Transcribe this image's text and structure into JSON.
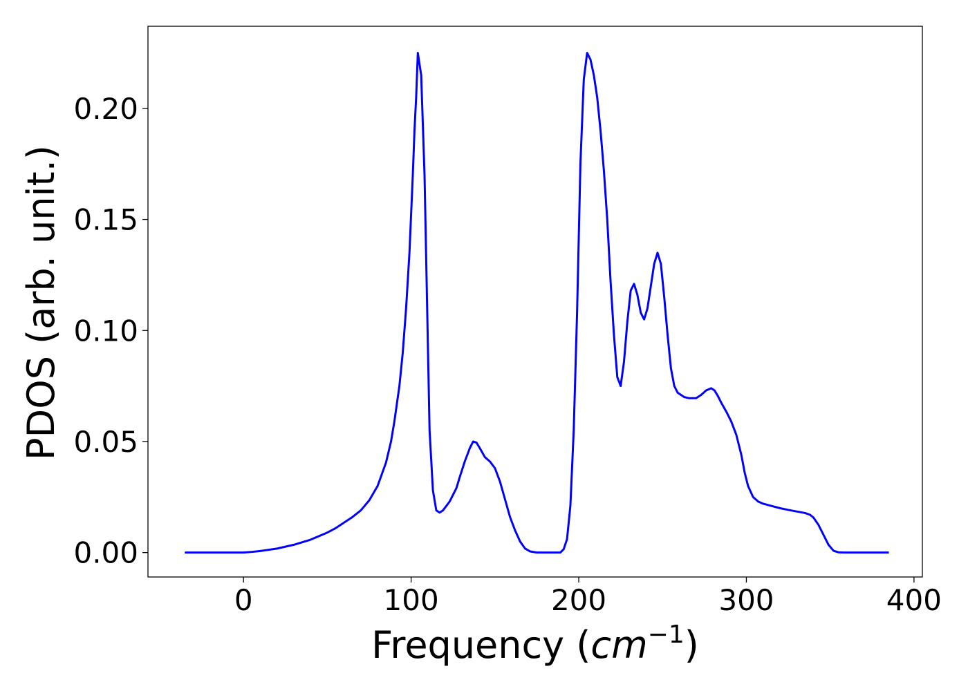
{
  "chart_data": {
    "type": "line",
    "xlabel": "Frequency (",
    "xlabel_math_base": "cm",
    "xlabel_math_sup": "−1",
    "xlabel_close": ")",
    "ylabel": "PDOS (arb. unit.)",
    "xlim": [
      -57,
      405
    ],
    "ylim": [
      -0.011,
      0.237
    ],
    "xticks": [
      0,
      100,
      200,
      300,
      400
    ],
    "xtick_labels": [
      "0",
      "100",
      "200",
      "300",
      "400"
    ],
    "yticks": [
      0.0,
      0.05,
      0.1,
      0.15,
      0.2
    ],
    "ytick_labels": [
      "0.00",
      "0.05",
      "0.10",
      "0.15",
      "0.20"
    ],
    "grid": false,
    "series": [
      {
        "color": "#0000ff",
        "x": [
          -35,
          -10,
          0,
          5,
          10,
          20,
          30,
          40,
          50,
          55,
          60,
          65,
          70,
          75,
          80,
          85,
          88,
          90,
          93,
          95,
          97,
          99,
          101,
          102,
          103,
          104,
          106,
          108,
          111,
          113,
          115,
          117,
          119,
          121,
          123,
          125,
          127,
          129,
          132,
          135,
          137,
          139,
          141,
          144,
          147,
          150,
          153,
          156,
          159,
          162,
          165,
          168,
          171,
          175,
          180,
          185,
          189,
          191,
          193,
          195,
          197,
          199,
          201,
          203,
          205,
          207,
          209,
          211,
          213,
          215,
          217,
          219,
          221,
          223,
          225,
          227,
          229,
          231,
          233,
          235,
          237,
          239,
          241,
          243,
          245,
          247,
          249,
          251,
          253,
          255,
          257,
          259,
          261,
          263,
          266,
          270,
          273,
          276,
          279,
          281,
          283,
          285,
          288,
          291,
          294,
          297,
          299,
          301,
          304,
          307,
          310,
          315,
          320,
          325,
          330,
          335,
          338,
          340,
          343,
          346,
          349,
          352,
          355,
          358,
          362,
          370,
          385
        ],
        "y": [
          0,
          0,
          0,
          0.0003,
          0.0007,
          0.0018,
          0.0035,
          0.0058,
          0.009,
          0.011,
          0.0135,
          0.016,
          0.019,
          0.0235,
          0.03,
          0.0405,
          0.05,
          0.059,
          0.075,
          0.09,
          0.11,
          0.135,
          0.17,
          0.19,
          0.205,
          0.225,
          0.215,
          0.17,
          0.055,
          0.028,
          0.019,
          0.018,
          0.019,
          0.021,
          0.023,
          0.026,
          0.029,
          0.034,
          0.041,
          0.047,
          0.05,
          0.0495,
          0.047,
          0.043,
          0.041,
          0.038,
          0.032,
          0.024,
          0.016,
          0.01,
          0.005,
          0.0018,
          0.0005,
          0,
          0,
          0,
          0,
          0.0015,
          0.006,
          0.021,
          0.055,
          0.108,
          0.175,
          0.213,
          0.225,
          0.222,
          0.215,
          0.205,
          0.19,
          0.172,
          0.15,
          0.122,
          0.098,
          0.079,
          0.075,
          0.086,
          0.104,
          0.118,
          0.121,
          0.116,
          0.108,
          0.105,
          0.11,
          0.12,
          0.13,
          0.135,
          0.13,
          0.115,
          0.098,
          0.083,
          0.075,
          0.072,
          0.071,
          0.07,
          0.0695,
          0.0695,
          0.071,
          0.073,
          0.074,
          0.073,
          0.0705,
          0.0675,
          0.0635,
          0.059,
          0.053,
          0.044,
          0.036,
          0.03,
          0.025,
          0.023,
          0.022,
          0.021,
          0.02,
          0.0192,
          0.0185,
          0.0178,
          0.017,
          0.0158,
          0.0125,
          0.008,
          0.0035,
          0.0008,
          0.0001,
          0,
          0,
          0,
          0
        ]
      }
    ]
  }
}
